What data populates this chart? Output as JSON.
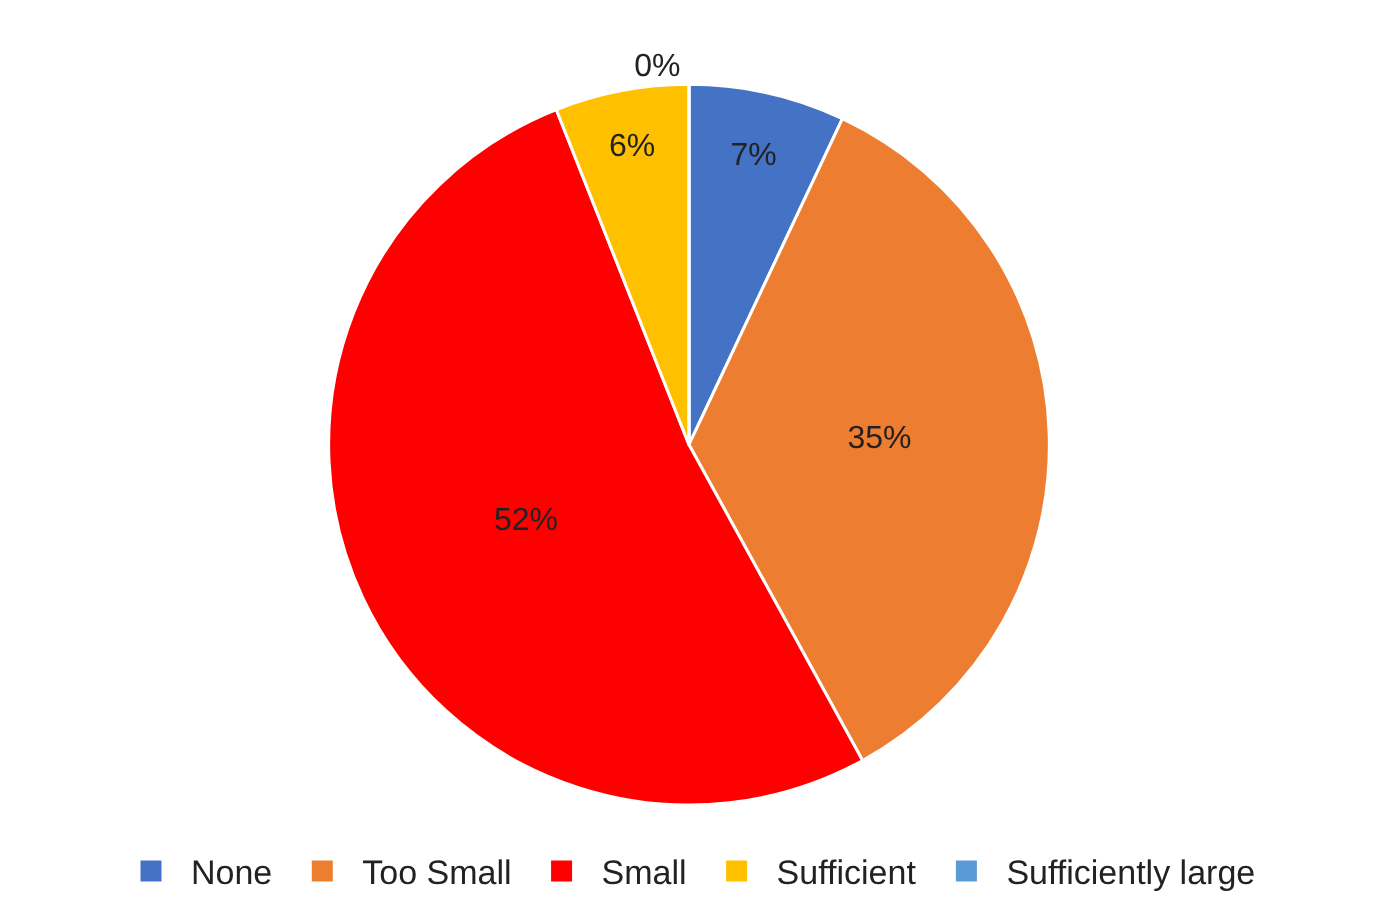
{
  "chart_data": {
    "type": "pie",
    "categories": [
      "None",
      "Too Small",
      "Small",
      "Sufficient",
      "Sufficiently large"
    ],
    "values": [
      7,
      35,
      52,
      6,
      0
    ],
    "colors": [
      "#4472c4",
      "#ed7d31",
      "#ff0000",
      "#ffc000",
      "#5b9bd5"
    ],
    "value_labels": [
      "7%",
      "35%",
      "52%",
      "6%",
      "0%"
    ],
    "legend": "bottom"
  }
}
